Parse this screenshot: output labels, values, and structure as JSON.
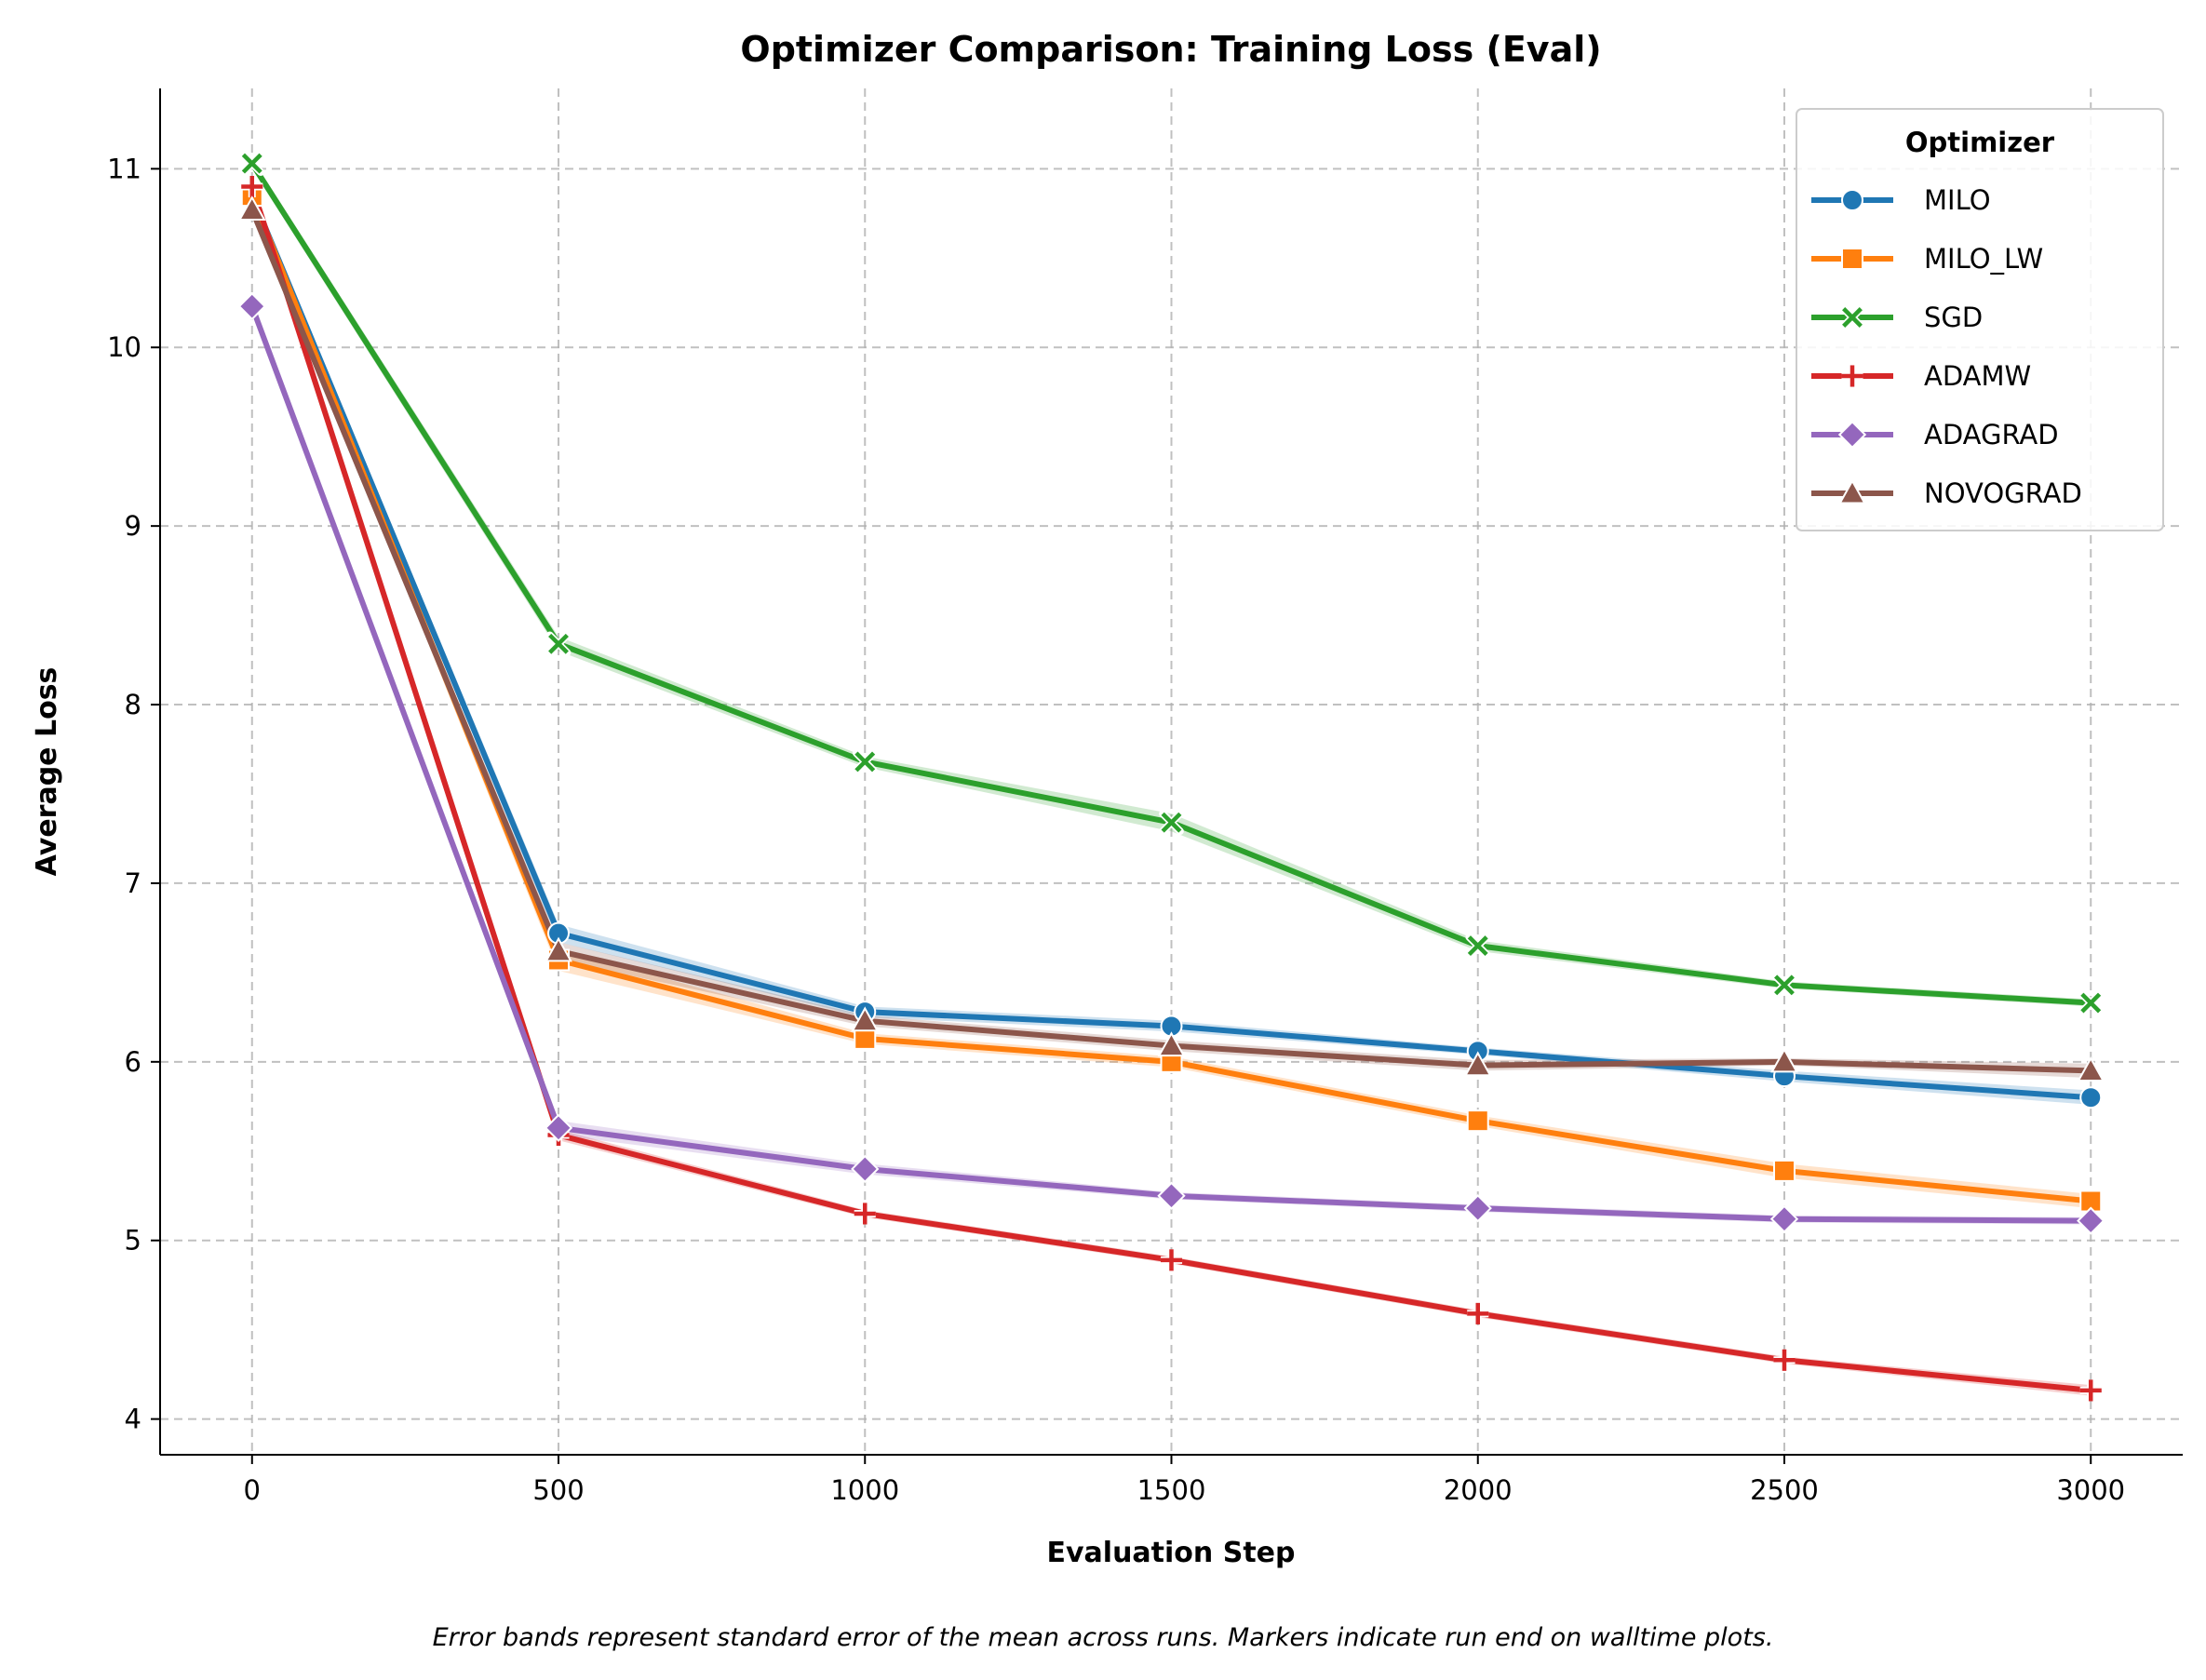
{
  "chart_data": {
    "type": "line",
    "title": "Optimizer Comparison: Training Loss (Eval)",
    "xlabel": "Evaluation Step",
    "ylabel": "Average Loss",
    "caption": "Error bands represent standard error of the mean across runs. Markers indicate run end on walltime plots.",
    "x": [
      0,
      500,
      1000,
      1500,
      2000,
      2500,
      3000
    ],
    "xticks": [
      "0",
      "500",
      "1000",
      "1500",
      "2000",
      "2500",
      "3000"
    ],
    "yticks": [
      "4",
      "5",
      "6",
      "7",
      "8",
      "9",
      "10",
      "11"
    ],
    "xlim": [
      -150,
      3150
    ],
    "ylim": [
      3.8,
      11.45
    ],
    "grid": true,
    "legend": {
      "title": "Optimizer",
      "placement": "top-right"
    },
    "series": [
      {
        "name": "MILO",
        "color": "#1f77b4",
        "marker": "circle",
        "values": [
          10.85,
          6.72,
          6.28,
          6.2,
          6.06,
          5.92,
          5.8
        ],
        "err": [
          0.03,
          0.05,
          0.03,
          0.03,
          0.02,
          0.03,
          0.04
        ]
      },
      {
        "name": "MILO_LW",
        "color": "#ff7f0e",
        "marker": "square",
        "values": [
          10.85,
          6.57,
          6.13,
          6.0,
          5.67,
          5.39,
          5.22
        ],
        "err": [
          0.03,
          0.06,
          0.03,
          0.03,
          0.03,
          0.04,
          0.04
        ]
      },
      {
        "name": "SGD",
        "color": "#2ca02c",
        "marker": "x",
        "values": [
          11.03,
          8.34,
          7.68,
          7.34,
          6.65,
          6.43,
          6.33
        ],
        "err": [
          0.03,
          0.04,
          0.03,
          0.05,
          0.03,
          0.02,
          0.02
        ]
      },
      {
        "name": "ADAMW",
        "color": "#d62728",
        "marker": "plus",
        "values": [
          10.9,
          5.59,
          5.15,
          4.89,
          4.59,
          4.33,
          4.16
        ],
        "err": [
          0.03,
          0.03,
          0.02,
          0.02,
          0.02,
          0.02,
          0.03
        ]
      },
      {
        "name": "ADAGRAD",
        "color": "#9467bd",
        "marker": "diamond",
        "values": [
          10.23,
          5.63,
          5.4,
          5.25,
          5.18,
          5.12,
          5.11
        ],
        "err": [
          0.03,
          0.04,
          0.03,
          0.02,
          0.02,
          0.02,
          0.02
        ]
      },
      {
        "name": "NOVOGRAD",
        "color": "#8c564b",
        "marker": "triangle",
        "values": [
          10.77,
          6.62,
          6.23,
          6.09,
          5.98,
          6.0,
          5.95
        ],
        "err": [
          0.03,
          0.05,
          0.03,
          0.03,
          0.03,
          0.02,
          0.04
        ]
      }
    ]
  }
}
